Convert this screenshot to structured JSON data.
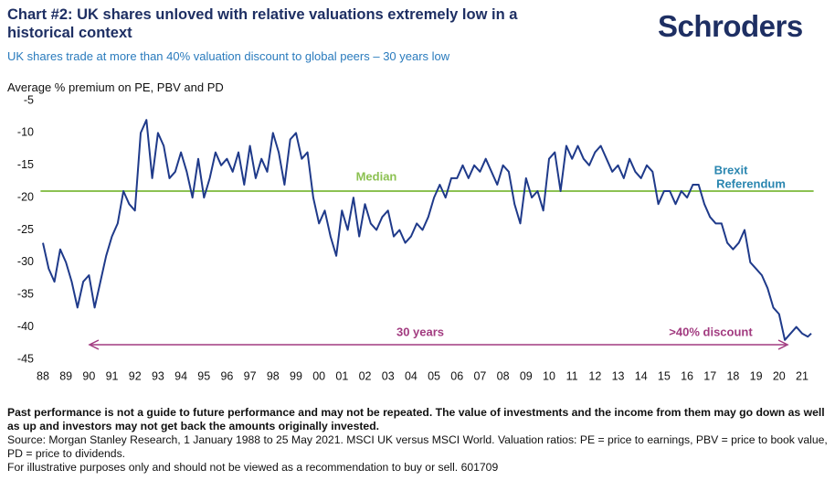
{
  "chart_data": {
    "type": "line",
    "title": "Chart #2: UK shares unloved with relative valuations extremely low in a historical context",
    "logo": "Schroders",
    "subtitle": "UK shares trade at more than 40% valuation discount to global peers – 30 years low",
    "y_label": "Average % premium on PE, PBV and PD",
    "notes": [
      "Past performance is not a guide to future performance and may not be repeated. The value of investments and the income from them may go down as well as up and investors may not get back the amounts originally invested.",
      "Source: Morgan Stanley Research, 1 January 1988 to 25 May 2021. MSCI UK versus MSCI World. Valuation ratios: PE = price to earnings, PBV = price to book value, PD = price to dividends.",
      "For illustrative purposes only and should not be viewed as a recommendation to buy or sell. 601709"
    ],
    "annotations": {
      "median": "Median",
      "brexit": [
        "Brexit",
        "Referendum"
      ],
      "span": "30 years",
      "discount": ">40% discount"
    },
    "median_value": -19,
    "median_color": "#8cc152",
    "color": "#1f3a8a",
    "x": [
      1988,
      1988.25,
      1988.5,
      1988.75,
      1989,
      1989.25,
      1989.5,
      1989.75,
      1990,
      1990.25,
      1990.5,
      1990.75,
      1991,
      1991.25,
      1991.5,
      1991.75,
      1992,
      1992.25,
      1992.5,
      1992.75,
      1993,
      1993.25,
      1993.5,
      1993.75,
      1994,
      1994.25,
      1994.5,
      1994.75,
      1995,
      1995.25,
      1995.5,
      1995.75,
      1996,
      1996.25,
      1996.5,
      1996.75,
      1997,
      1997.25,
      1997.5,
      1997.75,
      1998,
      1998.25,
      1998.5,
      1998.75,
      1999,
      1999.25,
      1999.5,
      1999.75,
      2000,
      2000.25,
      2000.5,
      2000.75,
      2001,
      2001.25,
      2001.5,
      2001.75,
      2002,
      2002.25,
      2002.5,
      2002.75,
      2003,
      2003.25,
      2003.5,
      2003.75,
      2004,
      2004.25,
      2004.5,
      2004.75,
      2005,
      2005.25,
      2005.5,
      2005.75,
      2006,
      2006.25,
      2006.5,
      2006.75,
      2007,
      2007.25,
      2007.5,
      2007.75,
      2008,
      2008.25,
      2008.5,
      2008.75,
      2009,
      2009.25,
      2009.5,
      2009.75,
      2010,
      2010.25,
      2010.5,
      2010.75,
      2011,
      2011.25,
      2011.5,
      2011.75,
      2012,
      2012.25,
      2012.5,
      2012.75,
      2013,
      2013.25,
      2013.5,
      2013.75,
      2014,
      2014.25,
      2014.5,
      2014.75,
      2015,
      2015.25,
      2015.5,
      2015.75,
      2016,
      2016.25,
      2016.5,
      2016.75,
      2017,
      2017.25,
      2017.5,
      2017.75,
      2018,
      2018.25,
      2018.5,
      2018.75,
      2019,
      2019.25,
      2019.5,
      2019.75,
      2020,
      2020.25,
      2020.5,
      2020.75,
      2021,
      2021.25,
      2021.4
    ],
    "values": [
      -27,
      -31,
      -33,
      -28,
      -30,
      -33,
      -37,
      -33,
      -32,
      -37,
      -33,
      -29,
      -26,
      -24,
      -19,
      -21,
      -22,
      -10,
      -8,
      -17,
      -10,
      -12,
      -17,
      -16,
      -13,
      -16,
      -20,
      -14,
      -20,
      -17,
      -13,
      -15,
      -14,
      -16,
      -13,
      -18,
      -12,
      -17,
      -14,
      -16,
      -10,
      -13,
      -18,
      -11,
      -10,
      -14,
      -13,
      -20,
      -24,
      -22,
      -26,
      -29,
      -22,
      -25,
      -20,
      -26,
      -21,
      -24,
      -25,
      -23,
      -22,
      -26,
      -25,
      -27,
      -26,
      -24,
      -25,
      -23,
      -20,
      -18,
      -20,
      -17,
      -17,
      -15,
      -17,
      -15,
      -16,
      -14,
      -16,
      -18,
      -15,
      -16,
      -21,
      -24,
      -17,
      -20,
      -19,
      -22,
      -14,
      -13,
      -19,
      -12,
      -14,
      -12,
      -14,
      -15,
      -13,
      -12,
      -14,
      -16,
      -15,
      -17,
      -14,
      -16,
      -17,
      -15,
      -16,
      -21,
      -19,
      -19,
      -21,
      -19,
      -20,
      -18,
      -18,
      -21,
      -23,
      -24,
      -24,
      -27,
      -28,
      -27,
      -25,
      -30,
      -31,
      -32,
      -34,
      -37,
      -38,
      -42,
      -41,
      -40,
      -41,
      -41.5,
      -41
    ],
    "xlim": [
      1987.5,
      2021.7
    ],
    "ylim": [
      -45,
      -5
    ],
    "yticks": [
      -5,
      -10,
      -15,
      -20,
      -25,
      -30,
      -35,
      -40,
      -45
    ],
    "xticks": [
      {
        "value": 1988,
        "label": "88"
      },
      {
        "value": 1989,
        "label": "89"
      },
      {
        "value": 1990,
        "label": "90"
      },
      {
        "value": 1991,
        "label": "91"
      },
      {
        "value": 1992,
        "label": "92"
      },
      {
        "value": 1993,
        "label": "93"
      },
      {
        "value": 1994,
        "label": "94"
      },
      {
        "value": 1995,
        "label": "95"
      },
      {
        "value": 1996,
        "label": "96"
      },
      {
        "value": 1997,
        "label": "97"
      },
      {
        "value": 1998,
        "label": "98"
      },
      {
        "value": 1999,
        "label": "99"
      },
      {
        "value": 2000,
        "label": "00"
      },
      {
        "value": 2001,
        "label": "01"
      },
      {
        "value": 2002,
        "label": "02"
      },
      {
        "value": 2003,
        "label": "03"
      },
      {
        "value": 2004,
        "label": "04"
      },
      {
        "value": 2005,
        "label": "05"
      },
      {
        "value": 2006,
        "label": "06"
      },
      {
        "value": 2007,
        "label": "07"
      },
      {
        "value": 2008,
        "label": "08"
      },
      {
        "value": 2009,
        "label": "09"
      },
      {
        "value": 2010,
        "label": "10"
      },
      {
        "value": 2011,
        "label": "11"
      },
      {
        "value": 2012,
        "label": "12"
      },
      {
        "value": 2013,
        "label": "13"
      },
      {
        "value": 2014,
        "label": "14"
      },
      {
        "value": 2015,
        "label": "15"
      },
      {
        "value": 2016,
        "label": "16"
      },
      {
        "value": 2017,
        "label": "17"
      },
      {
        "value": 2018,
        "label": "18"
      },
      {
        "value": 2019,
        "label": "19"
      },
      {
        "value": 2020,
        "label": "20"
      },
      {
        "value": 2021,
        "label": "21"
      }
    ],
    "grid": false
  }
}
